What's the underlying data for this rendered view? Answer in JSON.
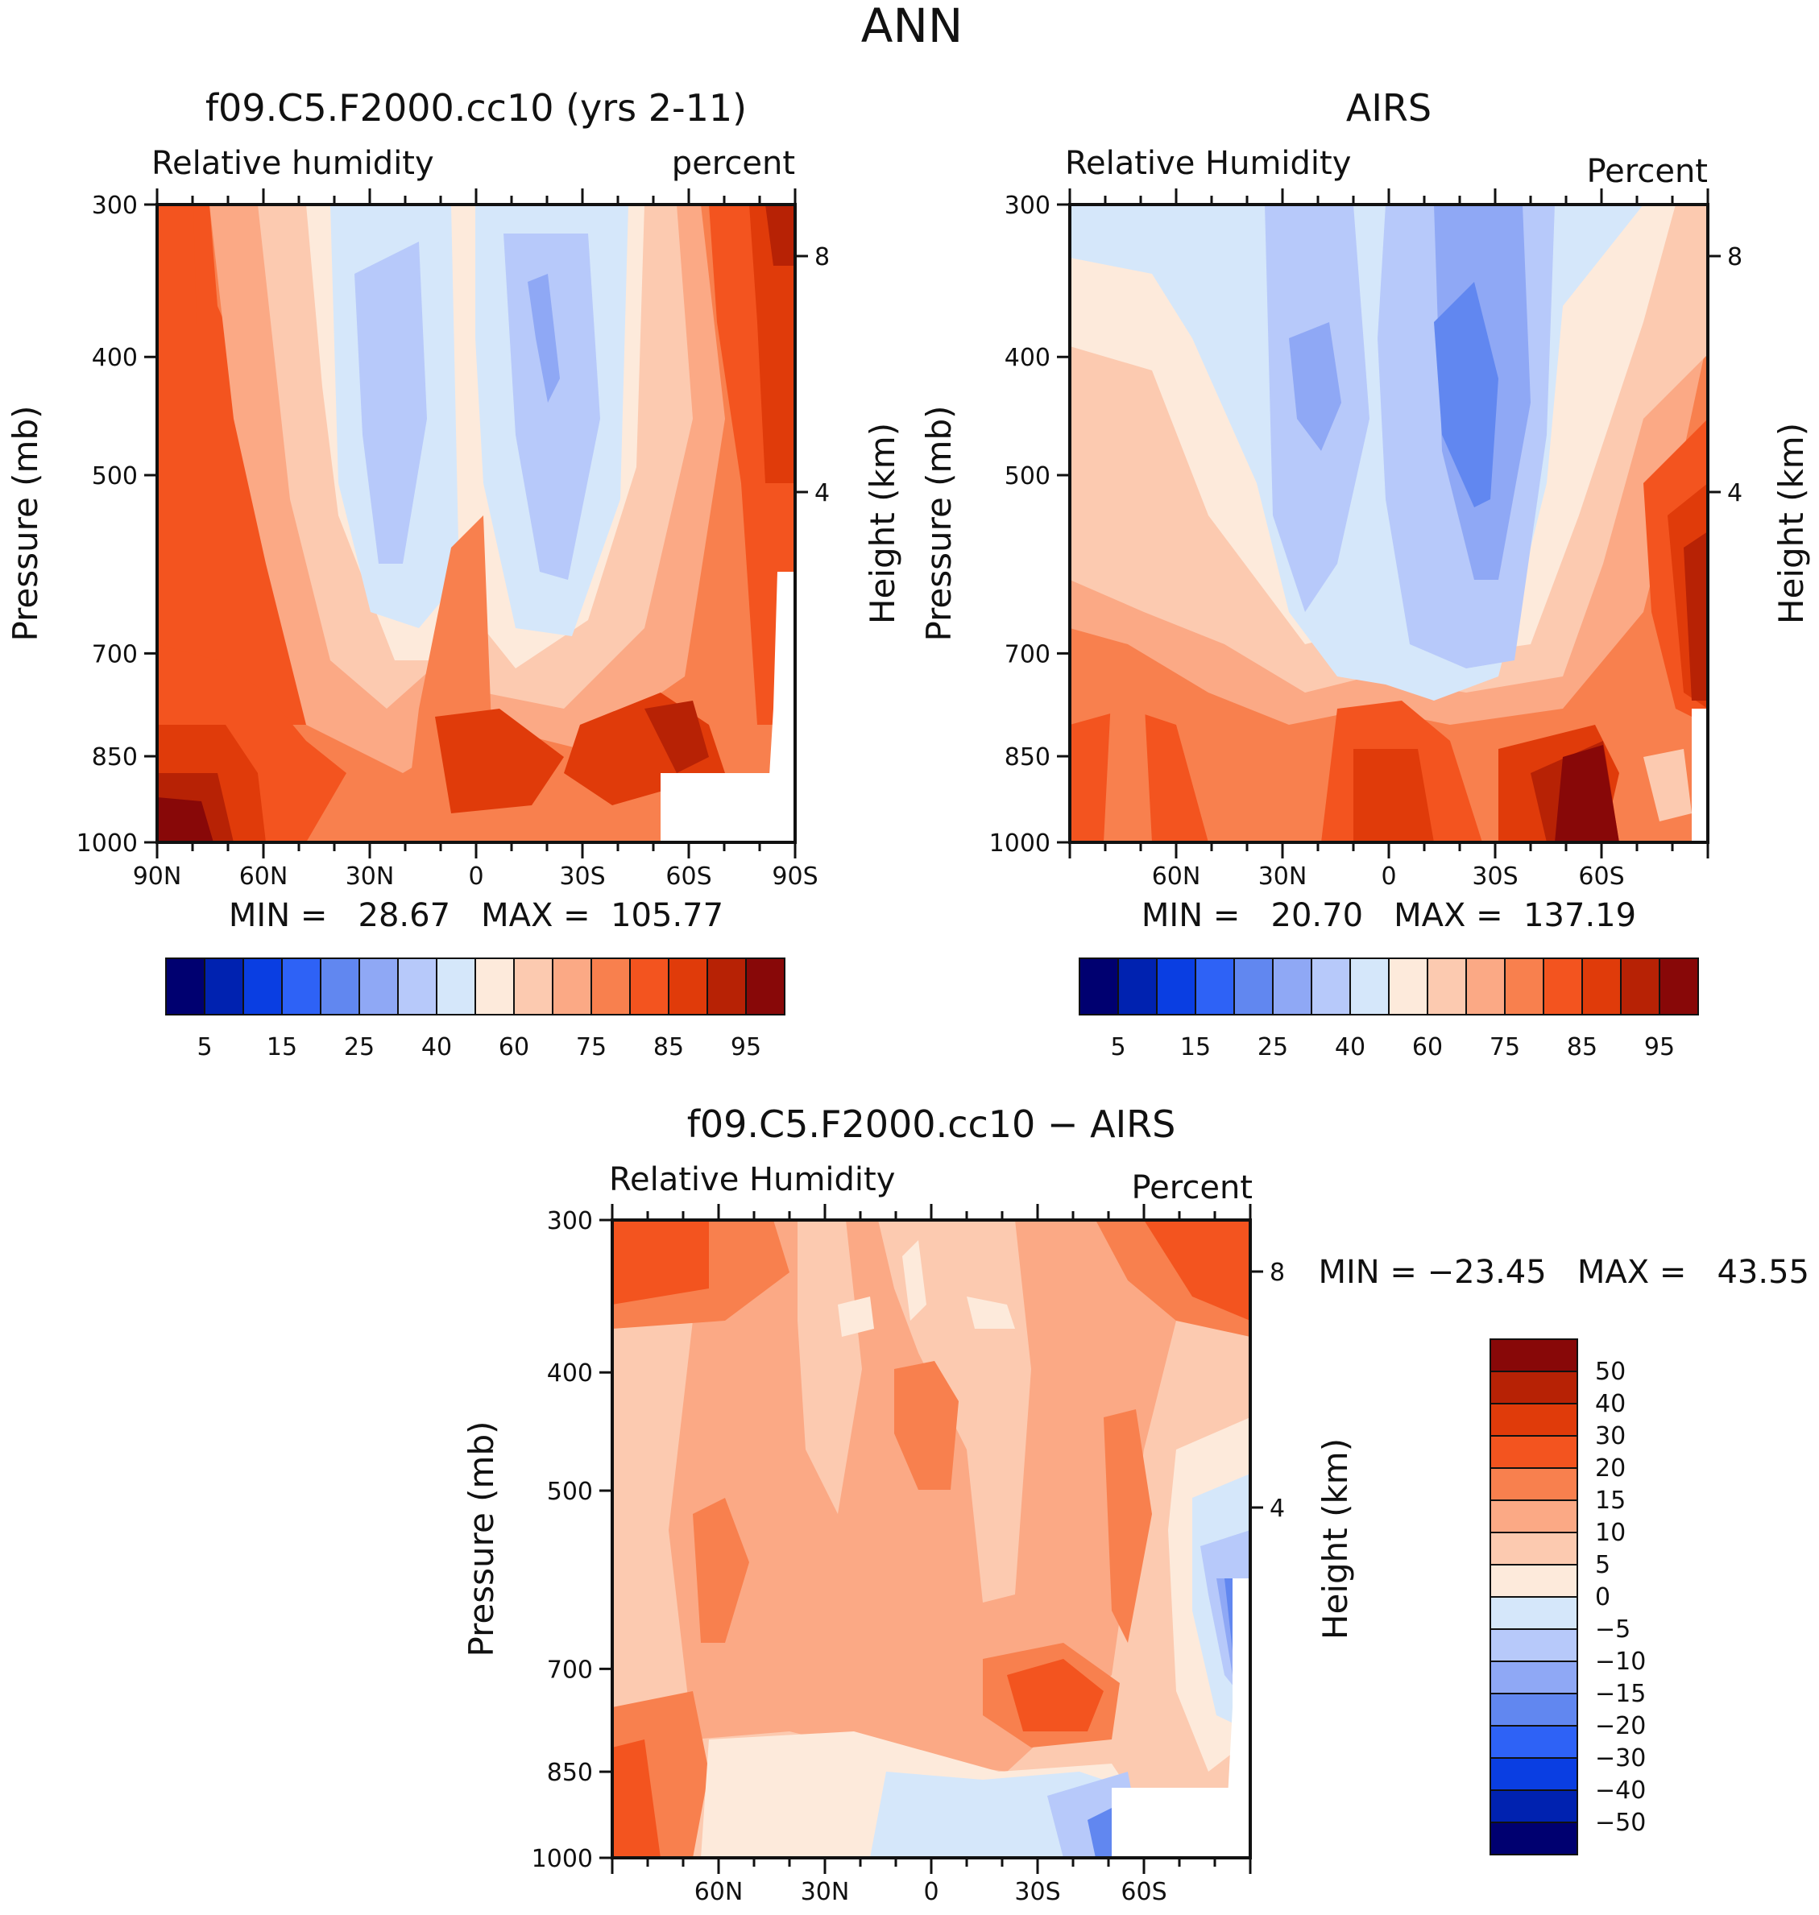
{
  "page_title": "ANN",
  "colors": {
    "scale": [
      "#000070",
      "#0022b0",
      "#0a3ee2",
      "#2e62f6",
      "#6187f0",
      "#8fa8f5",
      "#b7c9fa",
      "#d5e7fa",
      "#fdeadb",
      "#fccab0",
      "#fba985",
      "#f8804e",
      "#f3541f",
      "#e03b0a",
      "#b72205",
      "#880808"
    ]
  },
  "chart_data": [
    {
      "type": "contour",
      "name": "model",
      "title": "f09.C5.F2000.cc10 (yrs 2-11)",
      "variable": "Relative humidity",
      "units": "percent",
      "ylabel": "Pressure (mb)",
      "ylabel_right": "Height (km)",
      "y_ticks": [
        "300",
        "400",
        "500",
        "700",
        "850",
        "1000"
      ],
      "height_ticks": [
        "8",
        "4"
      ],
      "x_ticks": [
        "90N",
        "60N",
        "30N",
        "0",
        "30S",
        "60S",
        "90S"
      ],
      "stats": "MIN =   28.67   MAX =  105.77",
      "colorbar_labels": [
        "5",
        "15",
        "25",
        "40",
        "60",
        "75",
        "85",
        "95"
      ]
    },
    {
      "type": "contour",
      "name": "obs",
      "title": "AIRS",
      "variable": "Relative Humidity",
      "units": "Percent",
      "ylabel": "Pressure (mb)",
      "ylabel_right": "Height (km)",
      "y_ticks": [
        "300",
        "400",
        "500",
        "700",
        "850",
        "1000"
      ],
      "height_ticks": [
        "8",
        "4"
      ],
      "x_ticks": [
        "60N",
        "30N",
        "0",
        "30S",
        "60S"
      ],
      "stats": "MIN =   20.70   MAX =  137.19",
      "colorbar_labels": [
        "5",
        "15",
        "25",
        "40",
        "60",
        "75",
        "85",
        "95"
      ]
    },
    {
      "type": "contour",
      "name": "diff",
      "title": "f09.C5.F2000.cc10 − AIRS",
      "variable": "Relative Humidity",
      "units": "Percent",
      "ylabel": "Pressure (mb)",
      "ylabel_right": "Height (km)",
      "y_ticks": [
        "300",
        "400",
        "500",
        "700",
        "850",
        "1000"
      ],
      "height_ticks": [
        "8",
        "4"
      ],
      "x_ticks": [
        "60N",
        "30N",
        "0",
        "30S",
        "60S"
      ],
      "stats": "MIN = −23.45   MAX =   43.55",
      "colorbar_labels": [
        "50",
        "40",
        "30",
        "20",
        "15",
        "10",
        "5",
        "0",
        "−5",
        "−10",
        "−15",
        "−20",
        "−30",
        "−40",
        "−50"
      ]
    }
  ]
}
